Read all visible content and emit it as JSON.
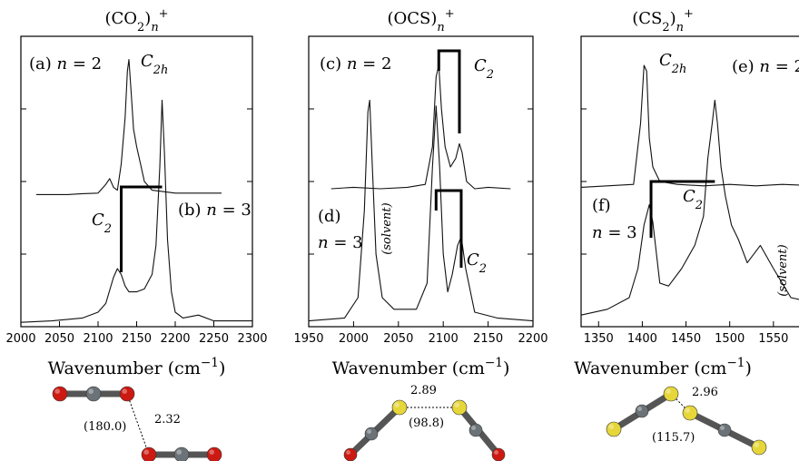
{
  "colors": {
    "C": "#6b7378",
    "O": "#cc1a12",
    "S": "#e6d63a",
    "trace": "#111111"
  },
  "chart_data": [
    {
      "type": "line",
      "title": "(CO₂)ₙ⁺",
      "title_parts": {
        "base": "(CO",
        "sub": "2",
        "close": ")",
        "n": "n",
        "sup": "+"
      },
      "xlabel": "Wavenumber (cm⁻¹)",
      "xlabel_parts": {
        "base": "Wavenumber (cm",
        "sup": "−1",
        "close": ")"
      },
      "xlim": [
        2000,
        2300
      ],
      "ylim": [
        0,
        1
      ],
      "xticks": [
        "2000",
        "2050",
        "2100",
        "2150",
        "2200",
        "2250",
        "2300"
      ],
      "xtick_values": [
        2000,
        2050,
        2100,
        2150,
        2200,
        2250,
        2300
      ],
      "grid": false,
      "legend": "none",
      "series": [
        {
          "panel_label": "(a) n = 2",
          "x": [
            2020,
            2040,
            2060,
            2080,
            2100,
            2110,
            2115,
            2120,
            2125,
            2130,
            2135,
            2138,
            2140,
            2143,
            2146,
            2150,
            2155,
            2160,
            2170,
            2185,
            2200,
            2230,
            2260
          ],
          "y": [
            0.455,
            0.455,
            0.455,
            0.458,
            0.46,
            0.49,
            0.51,
            0.48,
            0.47,
            0.56,
            0.72,
            0.88,
            0.92,
            0.8,
            0.68,
            0.62,
            0.56,
            0.5,
            0.47,
            0.465,
            0.46,
            0.46,
            0.46
          ]
        },
        {
          "panel_label": "(b) n = 3",
          "x": [
            2000,
            2040,
            2080,
            2100,
            2110,
            2120,
            2125,
            2130,
            2135,
            2140,
            2150,
            2160,
            2170,
            2175,
            2180,
            2183,
            2186,
            2190,
            2195,
            2200,
            2210,
            2230,
            2250,
            2300
          ],
          "y": [
            0.015,
            0.02,
            0.03,
            0.05,
            0.08,
            0.17,
            0.2,
            0.18,
            0.14,
            0.12,
            0.12,
            0.13,
            0.18,
            0.28,
            0.55,
            0.78,
            0.6,
            0.3,
            0.12,
            0.05,
            0.03,
            0.04,
            0.02,
            0.02
          ]
        }
      ],
      "annotations": [
        {
          "text": "C2h",
          "at_x": 2140,
          "note": "n = 2 peak"
        },
        {
          "text": "C2",
          "bracket_x": [
            2130,
            2183
          ],
          "note": "n = 3 doublet"
        }
      ],
      "structure": {
        "distance": "2.32",
        "angle": "(180.0)",
        "molecule": "CO2"
      }
    },
    {
      "type": "line",
      "title": "(OCS)ₙ⁺",
      "title_parts": {
        "base": "(OCS",
        "sub": "",
        "close": ")",
        "n": "n",
        "sup": "+"
      },
      "xlabel": "Wavenumber (cm⁻¹)",
      "xlabel_parts": {
        "base": "Wavenumber (cm",
        "sup": "−1",
        "close": ")"
      },
      "xlim": [
        1950,
        2200
      ],
      "ylim": [
        0,
        1
      ],
      "xticks": [
        "1950",
        "2000",
        "2050",
        "2100",
        "2150",
        "2200"
      ],
      "xtick_values": [
        1950,
        2000,
        2050,
        2100,
        2150,
        2200
      ],
      "grid": false,
      "legend": "none",
      "series": [
        {
          "panel_label": "(c) n = 2",
          "x": [
            1975,
            2000,
            2030,
            2060,
            2080,
            2088,
            2092,
            2095,
            2098,
            2102,
            2108,
            2114,
            2118,
            2121,
            2126,
            2135,
            2150,
            2175
          ],
          "y": [
            0.475,
            0.48,
            0.475,
            0.48,
            0.49,
            0.62,
            0.86,
            0.9,
            0.75,
            0.62,
            0.55,
            0.58,
            0.63,
            0.6,
            0.5,
            0.475,
            0.48,
            0.475
          ]
        },
        {
          "panel_label": "(d) n = 3",
          "x": [
            1950,
            1990,
            2005,
            2012,
            2016,
            2018,
            2021,
            2025,
            2032,
            2045,
            2070,
            2082,
            2088,
            2092,
            2096,
            2100,
            2105,
            2110,
            2116,
            2120,
            2125,
            2135,
            2160,
            2200
          ],
          "y": [
            0.02,
            0.03,
            0.1,
            0.4,
            0.74,
            0.78,
            0.55,
            0.25,
            0.1,
            0.06,
            0.06,
            0.15,
            0.55,
            0.76,
            0.55,
            0.25,
            0.12,
            0.18,
            0.28,
            0.31,
            0.2,
            0.05,
            0.03,
            0.02
          ]
        }
      ],
      "annotations": [
        {
          "text": "C2",
          "bracket_x": [
            2095,
            2118
          ],
          "note": "n = 2"
        },
        {
          "text": "C2",
          "bracket_x": [
            2092,
            2120
          ],
          "note": "n = 3"
        },
        {
          "text": "(solvent)",
          "at_x": 2018
        }
      ],
      "structure": {
        "distance": "2.89",
        "angle": "(98.8)",
        "molecule": "OCS"
      }
    },
    {
      "type": "line",
      "title": "(CS₂)ₙ⁺",
      "title_parts": {
        "base": "(CS",
        "sub": "2",
        "close": ")",
        "n": "n",
        "sup": "+"
      },
      "xlabel": "Wavenumber (cm⁻¹)",
      "xlabel_parts": {
        "base": "Wavenumber (cm",
        "sup": "−1",
        "close": ")"
      },
      "xlim": [
        1330,
        1600
      ],
      "ylim": [
        0,
        1
      ],
      "xticks": [
        "1350",
        "1400",
        "1450",
        "1500",
        "1550"
      ],
      "xtick_values": [
        1350,
        1400,
        1450,
        1500,
        1550
      ],
      "grid": false,
      "legend": "none",
      "series": [
        {
          "panel_label": "(e) n = 2",
          "x": [
            1330,
            1360,
            1390,
            1398,
            1402,
            1405,
            1408,
            1412,
            1420,
            1440,
            1470,
            1500,
            1530,
            1560,
            1600
          ],
          "y": [
            0.48,
            0.485,
            0.49,
            0.7,
            0.9,
            0.88,
            0.65,
            0.55,
            0.5,
            0.49,
            0.485,
            0.49,
            0.485,
            0.49,
            0.485
          ]
        },
        {
          "panel_label": "(f) n = 3",
          "x": [
            1330,
            1360,
            1385,
            1395,
            1402,
            1408,
            1412,
            1420,
            1430,
            1445,
            1460,
            1470,
            1475,
            1480,
            1483,
            1486,
            1490,
            1495,
            1502,
            1510,
            1520,
            1535,
            1550,
            1570,
            1600
          ],
          "y": [
            0.04,
            0.06,
            0.1,
            0.2,
            0.35,
            0.42,
            0.36,
            0.15,
            0.14,
            0.2,
            0.28,
            0.38,
            0.58,
            0.7,
            0.78,
            0.7,
            0.55,
            0.45,
            0.35,
            0.3,
            0.22,
            0.28,
            0.2,
            0.1,
            0.08
          ]
        }
      ],
      "annotations": [
        {
          "text": "C2h",
          "at_x": 1405,
          "note": "n = 2 peak"
        },
        {
          "text": "C2",
          "bracket_x": [
            1410,
            1483
          ],
          "note": "n = 3 doublet"
        },
        {
          "text": "(solvent)",
          "at_x": 1585
        }
      ],
      "structure": {
        "distance": "2.96",
        "angle": "(115.7)",
        "molecule": "CS2"
      }
    }
  ]
}
